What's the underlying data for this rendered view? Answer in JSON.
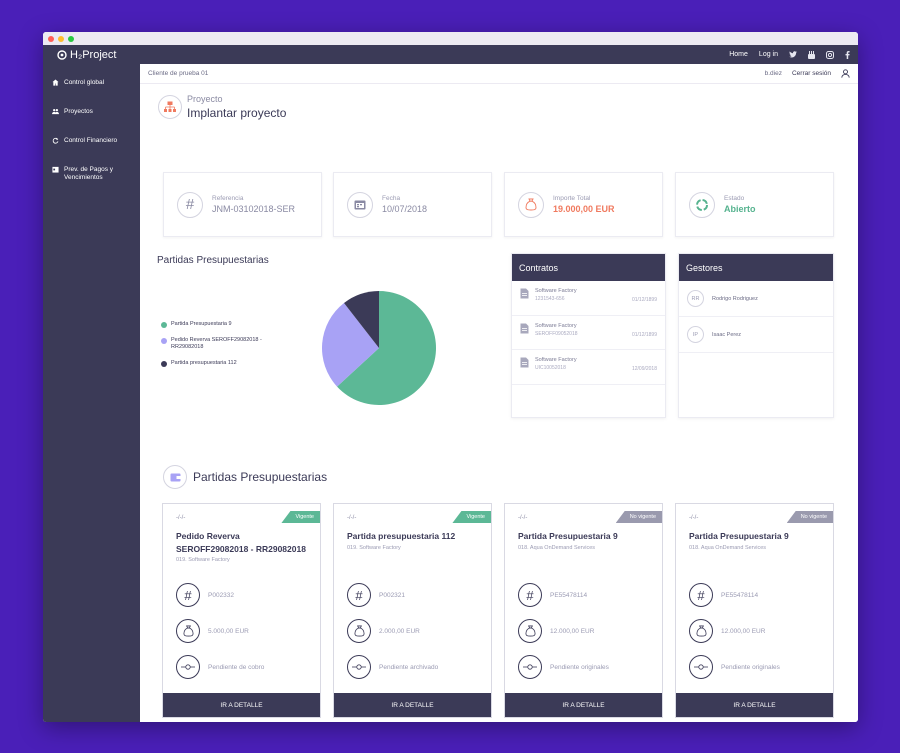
{
  "window": {
    "dots": [
      "#ff5f57",
      "#ffbd2e",
      "#28c840"
    ]
  },
  "topnav": {
    "brand": "H₂Project",
    "links": [
      "Home",
      "Log in"
    ],
    "social": [
      "twitter-icon",
      "youtube-icon",
      "instagram-icon",
      "facebook-icon"
    ]
  },
  "sidebar": {
    "items": [
      {
        "label": "Control global",
        "icon": "home-icon"
      },
      {
        "label": "Proyectos",
        "icon": "users-icon"
      },
      {
        "label": "Control Financiero",
        "icon": "refresh-icon"
      },
      {
        "label": "Prev. de Pagos y Vencimientos",
        "icon": "calendar-icon"
      }
    ]
  },
  "subheader": {
    "client": "Cliente de prueba 01",
    "user": "b.diez",
    "logout": "Cerrar sesión"
  },
  "project": {
    "label": "Proyecto",
    "title": "Implantar proyecto"
  },
  "kpis": [
    {
      "label": "Referencia",
      "value": "JNM-03102018-SER",
      "icon": "hash-icon",
      "color": "#8a8aa3"
    },
    {
      "label": "Fecha",
      "value": "10/07/2018",
      "icon": "calendar-icon",
      "color": "#8a8aa3"
    },
    {
      "label": "Importe Total",
      "value": "19.000,00 EUR",
      "icon": "money-bag-icon",
      "color": "#f07a5f"
    },
    {
      "label": "Estado",
      "value": "Abierto",
      "icon": "status-ring-icon",
      "color": "#56b38f"
    }
  ],
  "partidas_chart": {
    "title": "Partidas Presupuestarias",
    "chart_data": {
      "type": "pie",
      "series": [
        {
          "name": "Partida Presupuestaria 9",
          "value": 63.16,
          "color": "#5cb896"
        },
        {
          "name": "Pedido Reverva SEROFF29082018 - RR29082018",
          "value": 26.32,
          "color": "#a8a2f5"
        },
        {
          "name": "Partida presupuestaria 112",
          "value": 10.52,
          "color": "#3b3a57"
        }
      ]
    }
  },
  "contratos": {
    "title": "Contratos",
    "rows": [
      {
        "title": "Software Factory",
        "sub": "1231543-656",
        "date": "01/12/1899"
      },
      {
        "title": "Software Factory",
        "sub": "SEROFF09052018",
        "date": "01/12/1899"
      },
      {
        "title": "Software Factory",
        "sub": "UIC10052018",
        "date": "12/09/2018"
      }
    ]
  },
  "gestores": {
    "title": "Gestores",
    "rows": [
      {
        "initials": "RR",
        "name": "Rodrigo Rodriguez"
      },
      {
        "initials": "IP",
        "name": "Isaac Perez"
      }
    ]
  },
  "partidas_section": {
    "title": "Partidas Presupuestarias"
  },
  "cards": [
    {
      "date": "-/-/-",
      "status": "Vigente",
      "status_color": "#5cb896",
      "title": "Pedido Reverva SEROFF29082018 - RR29082018",
      "sub": "019. Software Factory",
      "ref": "P002332",
      "amount": "5.000,00 EUR",
      "state": "Pendiente de cobro",
      "button": "IR A DETALLE"
    },
    {
      "date": "-/-/-",
      "status": "Vigente",
      "status_color": "#5cb896",
      "title": "Partida presupuestaria 112",
      "sub": "019. Software Factory",
      "ref": "P002321",
      "amount": "2.000,00 EUR",
      "state": "Pendiente archivado",
      "button": "IR A DETALLE"
    },
    {
      "date": "-/-/-",
      "status": "No vigente",
      "status_color": "#9a9aae",
      "title": "Partida Presupuestaria 9",
      "sub": "018. Aqua OnDemand Services",
      "ref": "PE55478114",
      "amount": "12.000,00 EUR",
      "state": "Pendiente originales",
      "button": "IR A DETALLE"
    },
    {
      "date": "-/-/-",
      "status": "No vigente",
      "status_color": "#9a9aae",
      "title": "Partida Presupuestaria 9",
      "sub": "018. Aqua OnDemand Services",
      "ref": "PE55478114",
      "amount": "12.000,00 EUR",
      "state": "Pendiente originales",
      "button": "IR A DETALLE"
    }
  ]
}
